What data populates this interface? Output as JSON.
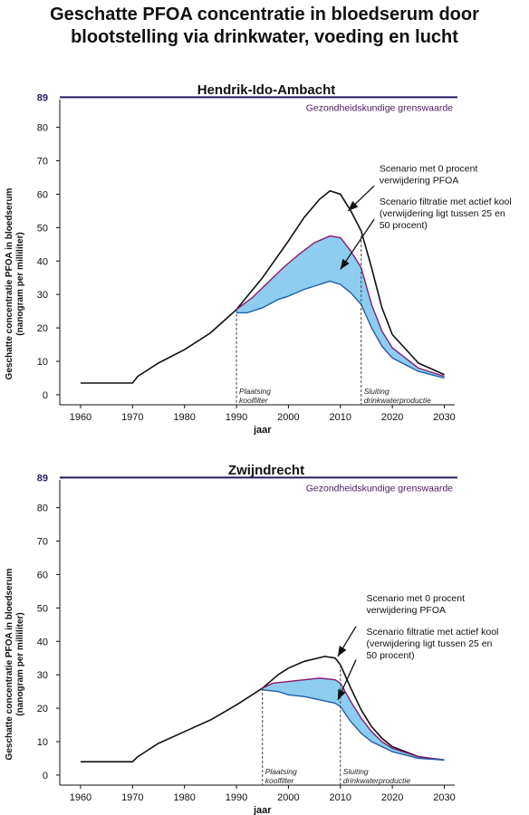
{
  "title_line1": "Geschatte PFOA concentratie in bloedserum door",
  "title_line2": "blootstelling via drinkwater, voeding en lucht",
  "colors": {
    "black_line": "#111111",
    "purple_line": "#8a1a6e",
    "blue_line": "#1f5fa8",
    "band_fill": "#8ecdf0",
    "limit_line": "#2a1a5e"
  },
  "chart_data": [
    {
      "type": "area",
      "title": "Hendrik-Ido-Ambacht",
      "xlabel": "jaar",
      "ylabel_line1": "Geschatte concentratie PFOA in bloedserum",
      "ylabel_line2": "(nanogram per milliliter)",
      "xlim": [
        1956,
        2032
      ],
      "ylim": [
        -3,
        91
      ],
      "x_ticks": [
        1960,
        1970,
        1980,
        1990,
        2000,
        2010,
        2020,
        2030
      ],
      "y_ticks": [
        0,
        10,
        20,
        30,
        40,
        50,
        60,
        70,
        80
      ],
      "grid": false,
      "limit": {
        "value": 89,
        "tick_label": "89",
        "label": "Gezondheidskundige grenswaarde"
      },
      "events": [
        {
          "x": 1990,
          "label_line1": "Plaatsing",
          "label_line2": "koolfilter"
        },
        {
          "x": 2014,
          "label_line1": "Sluiting",
          "label_line2": "drinkwaterproductie"
        }
      ],
      "annotations": [
        {
          "line1": "Scenario met 0 procent",
          "line2": "verwijdering PFOA",
          "line3": "",
          "text_x": 2017.5,
          "text_y": 66.8,
          "arrow_from": [
            2016.5,
            62.5
          ],
          "arrow_to": [
            2011.5,
            55
          ]
        },
        {
          "line1": "Scenario filtratie met actief kool",
          "line2": "(verwijdering ligt tussen 25 en",
          "line3": "50 procent)",
          "text_x": 2017.5,
          "text_y": 56.8,
          "arrow_from": [
            2016.5,
            52.5
          ],
          "arrow_to": [
            2010,
            37.5
          ]
        }
      ],
      "series": [
        {
          "x": [
            1960,
            1970,
            1971,
            1975,
            1980,
            1985,
            1990,
            1995,
            2000,
            2003,
            2006,
            2008,
            2010,
            2012,
            2014,
            2016,
            2018,
            2020,
            2025,
            2030
          ],
          "y": [
            3.5,
            3.5,
            5.5,
            9.5,
            13.5,
            18.5,
            25.5,
            35,
            46,
            53,
            58.5,
            61,
            60,
            55,
            49,
            38,
            26,
            18,
            9.5,
            6
          ]
        },
        {
          "x": [
            1990,
            1993,
            1996,
            1999,
            2002,
            2005,
            2008,
            2010,
            2012,
            2014,
            2016,
            2018,
            2020,
            2025,
            2030
          ],
          "y": [
            25.5,
            29,
            33.5,
            38,
            42,
            45.5,
            47.5,
            47,
            43,
            38,
            27,
            19,
            14,
            8,
            5.5
          ]
        },
        {
          "x": [
            1990,
            1992,
            1995,
            1998,
            2000,
            2003,
            2006,
            2008,
            2010,
            2012,
            2014,
            2016,
            2018,
            2020,
            2025,
            2030
          ],
          "y": [
            24.5,
            24.5,
            26,
            28.5,
            29.5,
            31.5,
            33,
            34,
            33,
            30.5,
            27,
            20,
            14.5,
            11,
            7,
            5
          ]
        }
      ]
    },
    {
      "type": "area",
      "title": "Zwijndrecht",
      "xlabel": "jaar",
      "ylabel_line1": "Geschatte concentratie PFOA in bloedserum",
      "ylabel_line2": "(nanogram per milliliter)",
      "xlim": [
        1956,
        2032
      ],
      "ylim": [
        -3,
        91
      ],
      "x_ticks": [
        1960,
        1970,
        1980,
        1990,
        2000,
        2010,
        2020,
        2030
      ],
      "y_ticks": [
        0,
        10,
        20,
        30,
        40,
        50,
        60,
        70,
        80
      ],
      "grid": false,
      "limit": {
        "value": 89,
        "tick_label": "89",
        "label": "Gezondheidskundige grenswaarde"
      },
      "events": [
        {
          "x": 1995,
          "label_line1": "Plaatsing",
          "label_line2": "koolfilter"
        },
        {
          "x": 2010,
          "label_line1": "Sluiting",
          "label_line2": "drinkwaterproductie"
        }
      ],
      "annotations": [
        {
          "line1": "Scenario met 0 procent",
          "line2": "verwijdering PFOA",
          "line3": "",
          "text_x": 2015,
          "text_y": 52,
          "arrow_from": [
            2013,
            44.5
          ],
          "arrow_to": [
            2009.5,
            35.5
          ]
        },
        {
          "line1": "Scenario filtratie met actief kool",
          "line2": "(verwijdering ligt tussen 25 en",
          "line3": "50 procent)",
          "text_x": 2015,
          "text_y": 42,
          "arrow_from": [
            2013,
            34.5
          ],
          "arrow_to": [
            2009.5,
            22.5
          ]
        }
      ],
      "series": [
        {
          "x": [
            1960,
            1970,
            1971,
            1975,
            1980,
            1985,
            1990,
            1995,
            1998,
            2000,
            2003,
            2007,
            2009,
            2010,
            2012,
            2014,
            2016,
            2018,
            2020,
            2025,
            2030
          ],
          "y": [
            4,
            4,
            5.5,
            9.5,
            13,
            16.5,
            21,
            26,
            30,
            32,
            34,
            35.5,
            35,
            33,
            26,
            19.5,
            14.5,
            11,
            8.5,
            5.5,
            4.5
          ]
        },
        {
          "x": [
            1995,
            1997,
            2000,
            2003,
            2006,
            2009,
            2010,
            2012,
            2014,
            2016,
            2018,
            2020,
            2025,
            2030
          ],
          "y": [
            26,
            27.5,
            28,
            28.5,
            29,
            28.5,
            27.5,
            22,
            17,
            13,
            10,
            8,
            5.5,
            4.5
          ]
        },
        {
          "x": [
            1995,
            1998,
            2000,
            2003,
            2006,
            2009,
            2010,
            2012,
            2014,
            2016,
            2018,
            2020,
            2025,
            2030
          ],
          "y": [
            25.5,
            25,
            24,
            23.5,
            22.5,
            21.5,
            20.5,
            16,
            12.5,
            10,
            8.5,
            7,
            5,
            4.5
          ]
        }
      ]
    }
  ]
}
